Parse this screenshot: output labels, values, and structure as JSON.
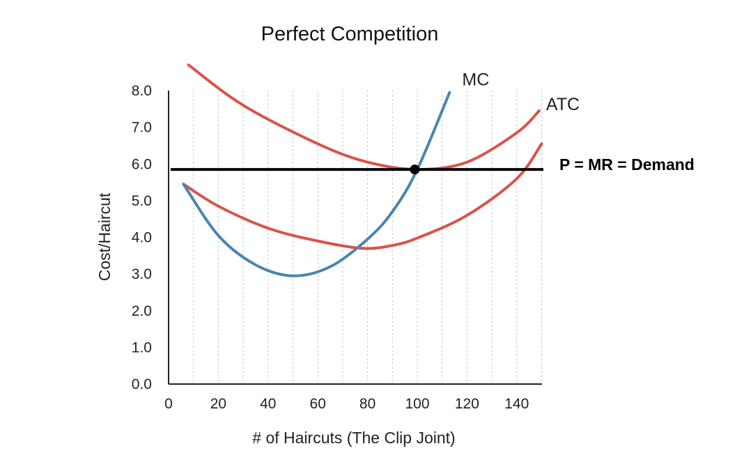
{
  "chart_data": {
    "type": "line",
    "title": "Perfect Competition",
    "xlabel": "# of Haircuts (The Clip Joint)",
    "ylabel": "Cost/Haircut",
    "xlim": [
      0,
      150
    ],
    "ylim": [
      0,
      8
    ],
    "x_ticks": [
      "0",
      "20",
      "40",
      "60",
      "80",
      "100",
      "120",
      "140"
    ],
    "y_ticks": [
      "0.0",
      "1.0",
      "2.0",
      "3.0",
      "4.0",
      "5.0",
      "6.0",
      "7.0",
      "8.0"
    ],
    "grid": "vertical dashed",
    "colors": {
      "cost_curve": "#d9534a",
      "mc": "#4a86ad",
      "demand": "#000000"
    },
    "series": [
      {
        "name": "ATC",
        "color": "#d9534a",
        "x": [
          8,
          30,
          60,
          80,
          100,
          120,
          140,
          149
        ],
        "y": [
          8.7,
          7.6,
          6.55,
          6.05,
          5.85,
          6.05,
          6.85,
          7.45
        ]
      },
      {
        "name": "",
        "color": "#d9534a",
        "x": [
          6,
          20,
          40,
          60,
          78,
          90,
          100,
          120,
          140,
          150
        ],
        "y": [
          5.45,
          4.85,
          4.25,
          3.9,
          3.7,
          3.78,
          3.98,
          4.6,
          5.6,
          6.55
        ]
      },
      {
        "name": "MC",
        "color": "#4a86ad",
        "x": [
          6,
          20,
          35,
          50,
          65,
          80,
          90,
          100,
          113
        ],
        "y": [
          5.45,
          4.05,
          3.25,
          2.95,
          3.2,
          3.95,
          4.7,
          5.85,
          7.95
        ]
      }
    ],
    "demand": {
      "label": "P = MR = Demand",
      "y": 5.85
    },
    "equilibrium": {
      "x": 99,
      "y": 5.85
    }
  }
}
